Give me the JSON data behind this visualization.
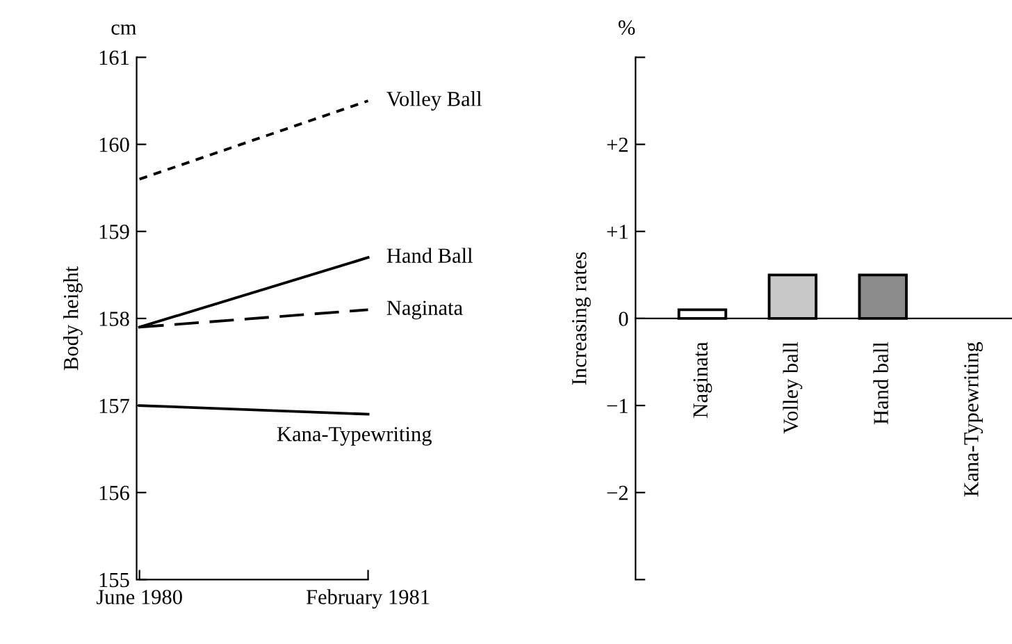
{
  "chart_data": [
    {
      "type": "line",
      "ylabel": "Body height",
      "annotations": [
        "cm"
      ],
      "categories": [
        "June 1980",
        "February 1981"
      ],
      "ylim": [
        155,
        161
      ],
      "yticks": [
        155,
        156,
        157,
        158,
        159,
        160,
        161
      ],
      "grid": false,
      "legend": false,
      "marker": "none",
      "series": [
        {
          "name": "Volley Ball",
          "color": "#000000",
          "line_style": "dotted",
          "values": [
            159.6,
            160.5
          ]
        },
        {
          "name": "Hand Ball",
          "color": "#000000",
          "line_style": "solid",
          "values": [
            157.9,
            158.7
          ]
        },
        {
          "name": "Naginata",
          "color": "#000000",
          "line_style": "dashed",
          "values": [
            157.9,
            158.1
          ]
        },
        {
          "name": "Kana-Typewriting",
          "color": "#000000",
          "line_style": "solid",
          "values": [
            157.0,
            156.9
          ]
        }
      ]
    },
    {
      "type": "bar",
      "ylabel": "Increasing rates",
      "annotations": [
        "%"
      ],
      "categories": [
        "Naginata",
        "Volley ball",
        "Hand ball",
        "Kana-Typewriting"
      ],
      "values": [
        0.1,
        0.5,
        0.5,
        0
      ],
      "colors": [
        "#ffffff",
        "#c8c8c8",
        "#8c8c8c",
        "#ffffff"
      ],
      "ylim": [
        -3,
        3
      ],
      "yticks": [
        {
          "value": -3,
          "label": null
        },
        {
          "value": -2,
          "label": "−2"
        },
        {
          "value": -1,
          "label": "−1"
        },
        0,
        {
          "value": 1,
          "label": "+1"
        },
        {
          "value": 2,
          "label": "+2"
        },
        {
          "value": 3,
          "label": null
        }
      ],
      "grid": false,
      "legend": false
    }
  ]
}
